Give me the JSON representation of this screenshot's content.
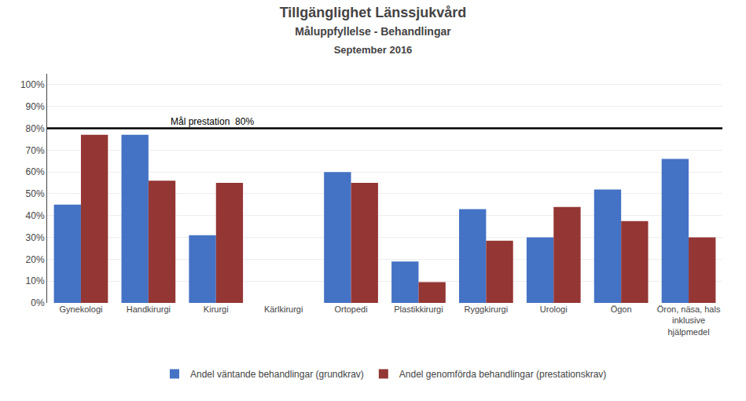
{
  "chart_data": {
    "type": "bar",
    "title": "Tillgänglighet Länssjukvård",
    "subtitle": [
      "Måluppfyllelse - Behandlingar",
      "September 2016"
    ],
    "categories": [
      "Gynekologi",
      "Handkirurgi",
      "Kirurgi",
      "Kärlkirurgi",
      "Ortopedi",
      "Plastikkirurgi",
      "Ryggkirurgi",
      "Urologi",
      "Ögon",
      "Öron, näsa, hals\ninklusive\nhjälpmedel"
    ],
    "series": [
      {
        "name": "Andel väntande behandlingar (grundkrav)",
        "color": "#4472C4",
        "values": [
          0.45,
          0.77,
          0.31,
          0.0,
          0.6,
          0.19,
          0.43,
          0.3,
          0.52,
          0.66
        ]
      },
      {
        "name": "Andel genomförda behandlingar (prestationskrav)",
        "color": "#943634",
        "values": [
          0.77,
          0.56,
          0.55,
          0.0,
          0.55,
          0.095,
          0.285,
          0.44,
          0.375,
          0.3
        ]
      }
    ],
    "ylim": [
      0,
      1.05
    ],
    "yticks": [
      {
        "value": 0.0,
        "label": "0%"
      },
      {
        "value": 0.1,
        "label": "10%"
      },
      {
        "value": 0.2,
        "label": "20%"
      },
      {
        "value": 0.3,
        "label": "30%"
      },
      {
        "value": 0.4,
        "label": "40%"
      },
      {
        "value": 0.5,
        "label": "50%"
      },
      {
        "value": 0.6,
        "label": "60%"
      },
      {
        "value": 0.7,
        "label": "70%"
      },
      {
        "value": 0.8,
        "label": "80%"
      },
      {
        "value": 0.9,
        "label": "90%"
      },
      {
        "value": 1.0,
        "label": "100%"
      }
    ],
    "grid": true,
    "legend": "bottom",
    "annotations": [
      {
        "text": "Mål prestation  80%",
        "y": 0.8,
        "color": "#000000"
      }
    ]
  }
}
